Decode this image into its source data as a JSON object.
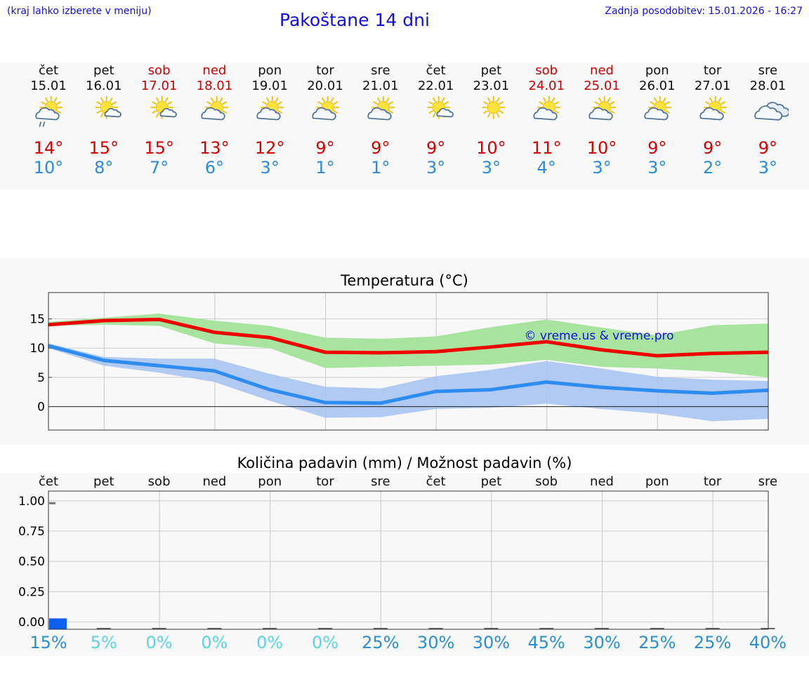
{
  "header": {
    "menu_hint": "(kraj lahko izberete v meniju)",
    "title": "Pakoštane 14 dni",
    "last_update": "Zadnja posodobitev: 15.01.2026 - 16:27"
  },
  "days": [
    {
      "dow": "čet",
      "date": "15.01",
      "max": "14°",
      "min": "10°",
      "weekend": false,
      "icon": "sun-cloud-rain-icon"
    },
    {
      "dow": "pet",
      "date": "16.01",
      "max": "15°",
      "min": "8°",
      "weekend": false,
      "icon": "sun-small-cloud-icon"
    },
    {
      "dow": "sob",
      "date": "17.01",
      "max": "15°",
      "min": "7°",
      "weekend": true,
      "icon": "sun-small-cloud-icon"
    },
    {
      "dow": "ned",
      "date": "18.01",
      "max": "13°",
      "min": "6°",
      "weekend": true,
      "icon": "sun-cloud-icon"
    },
    {
      "dow": "pon",
      "date": "19.01",
      "max": "12°",
      "min": "3°",
      "weekend": false,
      "icon": "sun-cloud-icon"
    },
    {
      "dow": "tor",
      "date": "20.01",
      "max": "9°",
      "min": "1°",
      "weekend": false,
      "icon": "sun-cloud-icon"
    },
    {
      "dow": "sre",
      "date": "21.01",
      "max": "9°",
      "min": "1°",
      "weekend": false,
      "icon": "sun-cloud-icon"
    },
    {
      "dow": "čet",
      "date": "22.01",
      "max": "9°",
      "min": "3°",
      "weekend": false,
      "icon": "sun-small-cloud-icon"
    },
    {
      "dow": "pet",
      "date": "23.01",
      "max": "10°",
      "min": "3°",
      "weekend": false,
      "icon": "sun-icon"
    },
    {
      "dow": "sob",
      "date": "24.01",
      "max": "11°",
      "min": "4°",
      "weekend": true,
      "icon": "sun-cloud-icon"
    },
    {
      "dow": "ned",
      "date": "25.01",
      "max": "10°",
      "min": "3°",
      "weekend": true,
      "icon": "sun-cloud-icon"
    },
    {
      "dow": "pon",
      "date": "26.01",
      "max": "9°",
      "min": "3°",
      "weekend": false,
      "icon": "sun-cloud-icon"
    },
    {
      "dow": "tor",
      "date": "27.01",
      "max": "9°",
      "min": "2°",
      "weekend": false,
      "icon": "sun-cloud-icon"
    },
    {
      "dow": "sre",
      "date": "28.01",
      "max": "9°",
      "min": "3°",
      "weekend": false,
      "icon": "cloudy-icon"
    }
  ],
  "colors": {
    "max_line": "#ee0000",
    "min_line": "#2d8cf0",
    "max_band": "#a8e4a0",
    "min_band": "#a9c4f0",
    "overlap_band": "#7fc69e",
    "precip_bar": "#1060f0",
    "pct_high": "#2a8fd0",
    "pct_low": "#5ad3e8"
  },
  "chart_data": [
    {
      "type": "line",
      "title": "Temperatura (°C)",
      "watermark": "© vreme.us & vreme.pro",
      "x": [
        "15.01",
        "16.01",
        "17.01",
        "18.01",
        "19.01",
        "20.01",
        "21.01",
        "22.01",
        "23.01",
        "24.01",
        "25.01",
        "26.01",
        "27.01",
        "28.01"
      ],
      "ylim": [
        -4,
        19.5
      ],
      "yticks": [
        0,
        5,
        10,
        15
      ],
      "series": [
        {
          "name": "max",
          "values": [
            14.0,
            14.7,
            14.9,
            12.7,
            11.8,
            9.3,
            9.2,
            9.4,
            10.2,
            11.1,
            9.7,
            8.7,
            9.1,
            9.3
          ]
        },
        {
          "name": "min",
          "values": [
            10.4,
            7.9,
            7.0,
            6.1,
            2.9,
            0.7,
            0.6,
            2.6,
            2.9,
            4.2,
            3.3,
            2.7,
            2.3,
            2.8
          ]
        },
        {
          "name": "max_range_low",
          "values": [
            13.8,
            14.0,
            13.8,
            10.8,
            10.0,
            6.6,
            6.8,
            7.0,
            7.2,
            8.0,
            6.8,
            6.5,
            6.0,
            5.0
          ]
        },
        {
          "name": "max_range_high",
          "values": [
            14.5,
            15.2,
            15.9,
            14.7,
            13.8,
            11.8,
            11.6,
            12.0,
            13.6,
            14.9,
            13.5,
            12.2,
            13.9,
            14.2
          ]
        },
        {
          "name": "min_range_low",
          "values": [
            10.0,
            7.0,
            5.8,
            4.2,
            1.0,
            -1.9,
            -1.8,
            -0.4,
            -0.2,
            0.5,
            -0.4,
            -1.2,
            -2.5,
            -2.1
          ]
        },
        {
          "name": "min_range_high",
          "values": [
            10.8,
            8.5,
            8.2,
            8.2,
            5.6,
            3.4,
            3.1,
            5.2,
            6.3,
            7.8,
            6.5,
            5.1,
            4.6,
            4.4
          ]
        }
      ]
    },
    {
      "type": "bar",
      "title": "Količina padavin (mm) / Možnost padavin (%)",
      "categories": [
        "čet",
        "pet",
        "sob",
        "ned",
        "pon",
        "tor",
        "sre",
        "čet",
        "pet",
        "sob",
        "ned",
        "pon",
        "tor",
        "sre"
      ],
      "values": [
        0.03,
        0,
        0,
        0,
        0,
        0,
        0,
        0,
        0,
        0,
        0,
        0,
        0,
        0
      ],
      "marker_value": 0.98,
      "ylim": [
        -0.06,
        1.08
      ],
      "yticks": [
        "0.00",
        "0.25",
        "0.50",
        "0.75",
        "1.00"
      ],
      "chance": [
        "15%",
        "5%",
        "0%",
        "0%",
        "0%",
        "0%",
        "25%",
        "30%",
        "30%",
        "45%",
        "30%",
        "25%",
        "25%",
        "40%"
      ]
    }
  ]
}
